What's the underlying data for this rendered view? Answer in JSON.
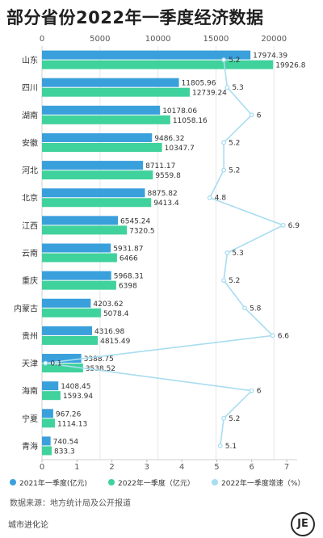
{
  "title": "部分省份2022年一季度经济数据",
  "source": "数据来源：地方统计局及公开报道",
  "brand": "城市进化论",
  "logo_text": "JE",
  "colors": {
    "bar2021": "#3aa0dc",
    "bar2022": "#40d29c",
    "line2022": "#a8ddf0",
    "grid": "#e6e6e6"
  },
  "chart_data": {
    "type": "bar",
    "orientation": "horizontal",
    "categories": [
      "山东",
      "四川",
      "湖南",
      "安徽",
      "河北",
      "北京",
      "江西",
      "云南",
      "重庆",
      "内蒙古",
      "贵州",
      "天津",
      "海南",
      "宁夏",
      "青海"
    ],
    "series": [
      {
        "name": "2021年一季度(亿元)",
        "type": "bar",
        "axis": "top",
        "values": [
          17974.39,
          11805.96,
          10178.06,
          9486.32,
          8711.17,
          8875.82,
          6545.24,
          5931.87,
          5968.31,
          4203.62,
          4316.98,
          3388.75,
          1408.45,
          967.26,
          740.54
        ],
        "labels": [
          "17974.39",
          "11805.96",
          "10178.06",
          "9486.32",
          "8711.17",
          "8875.82",
          "6545.24",
          "5931.87",
          "5968.31",
          "4203.62",
          "4316.98",
          "3388.75",
          "1408.45",
          "967.26",
          "740.54"
        ]
      },
      {
        "name": "2022年一季度（亿元）",
        "type": "bar",
        "axis": "top",
        "values": [
          19926.8,
          12739.24,
          11058.16,
          10347.7,
          9559.8,
          9413.4,
          7320.5,
          6466,
          6398,
          5078.4,
          4815.49,
          3538.52,
          1593.94,
          1114.13,
          833.3
        ],
        "labels": [
          "19926.8",
          "12739.24",
          "11058.16",
          "10347.7",
          "9559.8",
          "9413.4",
          "7320.5",
          "6466",
          "6398",
          "5078.4",
          "4815.49",
          "3538.52",
          "1593.94",
          "1114.13",
          "833.3"
        ]
      },
      {
        "name": "2022年一季度增速（%）",
        "type": "line",
        "axis": "bottom",
        "values": [
          5.2,
          5.3,
          6,
          5.2,
          5.2,
          4.8,
          6.9,
          5.3,
          5.2,
          5.8,
          6.6,
          0.1,
          6,
          5.2,
          5.1
        ],
        "labels": [
          "5.2",
          "5.3",
          "6",
          "5.2",
          "5.2",
          "4.8",
          "6.9",
          "5.3",
          "5.2",
          "5.8",
          "6.6",
          "0.1",
          "6",
          "5.2",
          "5.1"
        ]
      }
    ],
    "x_top": {
      "range": [
        0,
        22000
      ],
      "ticks": [
        "0",
        "5000",
        "10000",
        "15000",
        "20000"
      ],
      "tick_values": [
        0,
        5000,
        10000,
        15000,
        20000
      ]
    },
    "x_bottom": {
      "range": [
        0,
        7.3
      ],
      "ticks": [
        "0",
        "1",
        "2",
        "3",
        "4",
        "5",
        "6",
        "7"
      ],
      "tick_values": [
        0,
        1,
        2,
        3,
        4,
        5,
        6,
        7
      ]
    },
    "grid": true,
    "legend_position": "bottom"
  }
}
